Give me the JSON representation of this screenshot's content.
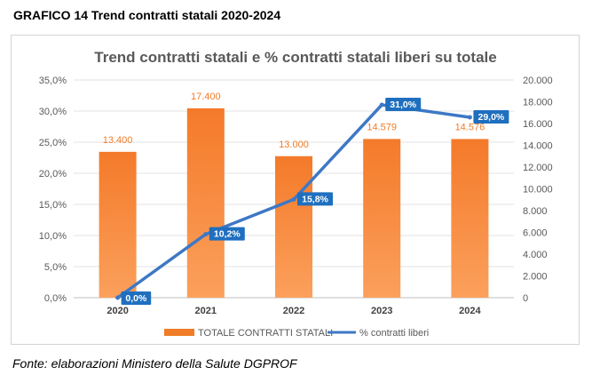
{
  "header": {
    "title": "GRAFICO 14 Trend contratti statali 2020-2024"
  },
  "footer": {
    "source": "Fonte: elaborazioni Ministero della Salute DGPROF"
  },
  "colors": {
    "bar": "#f07c27",
    "line": "#3e78c5",
    "label_box": "#1f6fbf",
    "bar_label": "#f07c27"
  },
  "chart_data": {
    "type": "bar",
    "title": "Trend contratti statali e % contratti statali liberi su totale",
    "categories": [
      "2020",
      "2021",
      "2022",
      "2023",
      "2024"
    ],
    "series": [
      {
        "name": "TOTALE CONTRATTI STATALI",
        "type": "bar",
        "axis": "right",
        "values": [
          13400,
          17400,
          13000,
          14579,
          14576
        ],
        "labels": [
          "13.400",
          "17.400",
          "13.000",
          "14.579",
          "14.576"
        ]
      },
      {
        "name": "% contratti liberi",
        "type": "line",
        "axis": "left",
        "values": [
          0.0,
          10.2,
          15.8,
          31.0,
          29.0
        ],
        "labels": [
          "0,0%",
          "10,2%",
          "15,8%",
          "31,0%",
          "29,0%"
        ]
      }
    ],
    "y_left": {
      "ylim": [
        0,
        35
      ],
      "ticks": [
        "0,0%",
        "5,0%",
        "10,0%",
        "15,0%",
        "20,0%",
        "25,0%",
        "30,0%",
        "35,0%"
      ]
    },
    "y_right": {
      "ylim": [
        0,
        20000
      ],
      "ticks": [
        "0",
        "2.000",
        "4.000",
        "6.000",
        "8.000",
        "10.000",
        "12.000",
        "14.000",
        "16.000",
        "18.000",
        "20.000"
      ]
    },
    "grid": true,
    "legend": "bottom"
  }
}
